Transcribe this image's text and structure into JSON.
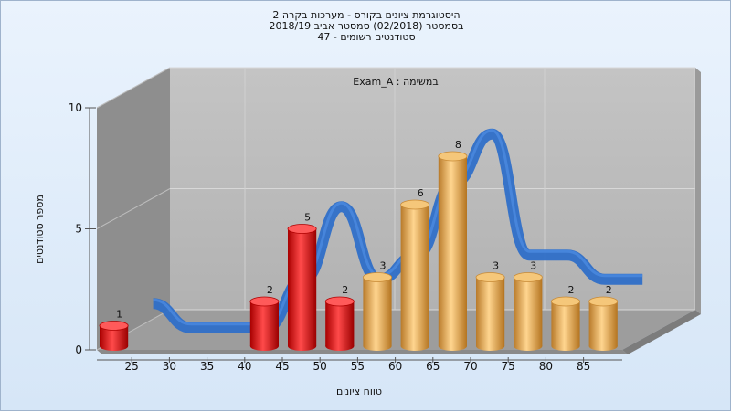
{
  "chart_data": {
    "type": "bar",
    "title_lines": [
      "היסטוגרמת ציונים בקורס - מערכות בקרה 2",
      "בסמסטר  (02/2018)  סמסטר אביב 2018/19",
      "סטודנטים רשומים - 47"
    ],
    "annotation": "Exam_A : במשימה",
    "xlabel": "טווח ציונים",
    "ylabel": "מספר סטודנטים",
    "ylim": [
      0,
      10
    ],
    "yticks": [
      0,
      5,
      10
    ],
    "x_ticks": [
      "25",
      "30",
      "35",
      "40",
      "45",
      "50",
      "55",
      "60",
      "65",
      "70",
      "75",
      "80",
      "85"
    ],
    "categories": [
      "20-25",
      "25-30",
      "30-35",
      "35-40",
      "40-45",
      "45-50",
      "50-55",
      "55-60",
      "60-65",
      "65-70",
      "70-75",
      "75-80",
      "80-85",
      "85-90"
    ],
    "values": [
      1,
      0,
      0,
      0,
      2,
      5,
      2,
      3,
      6,
      8,
      3,
      3,
      2,
      2
    ],
    "bar_colors": [
      "#e01818",
      "#e01818",
      "#e01818",
      "#e01818",
      "#e01818",
      "#e01818",
      "#e01818",
      "#e0a04a",
      "#e0a04a",
      "#e0a04a",
      "#e0a04a",
      "#e0a04a",
      "#e0a04a",
      "#e0a04a"
    ],
    "ribbon_color": "#2f6fc8",
    "grid": true
  }
}
